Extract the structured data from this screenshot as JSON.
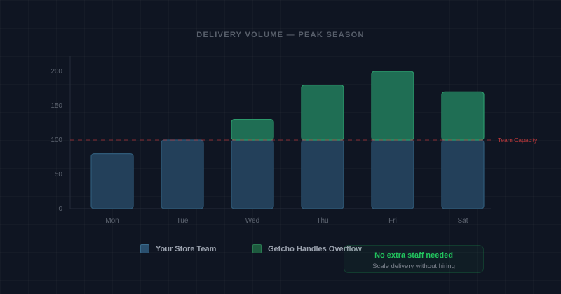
{
  "chart_data": {
    "type": "bar",
    "stacked": true,
    "title": "DELIVERY VOLUME — PEAK SEASON",
    "categories": [
      "Mon",
      "Tue",
      "Wed",
      "Thu",
      "Fri",
      "Sat"
    ],
    "series": [
      {
        "name": "Your Store Team",
        "values": [
          80,
          100,
          100,
          100,
          100,
          100
        ],
        "color": "#2a4f6e"
      },
      {
        "name": "Getcho Handles Overflow",
        "values": [
          0,
          0,
          30,
          80,
          100,
          70
        ],
        "color": "#1f7a5a"
      }
    ],
    "ylim": [
      0,
      220
    ],
    "yticks": [
      0,
      50,
      100,
      150,
      200
    ],
    "reference_line": {
      "value": 100,
      "label": "Team Capacity",
      "color": "#c0393b"
    },
    "grid": true,
    "legend_placement": "bottom"
  },
  "callout": {
    "headline": "No extra staff needed",
    "subtext": "Scale delivery without hiring"
  }
}
